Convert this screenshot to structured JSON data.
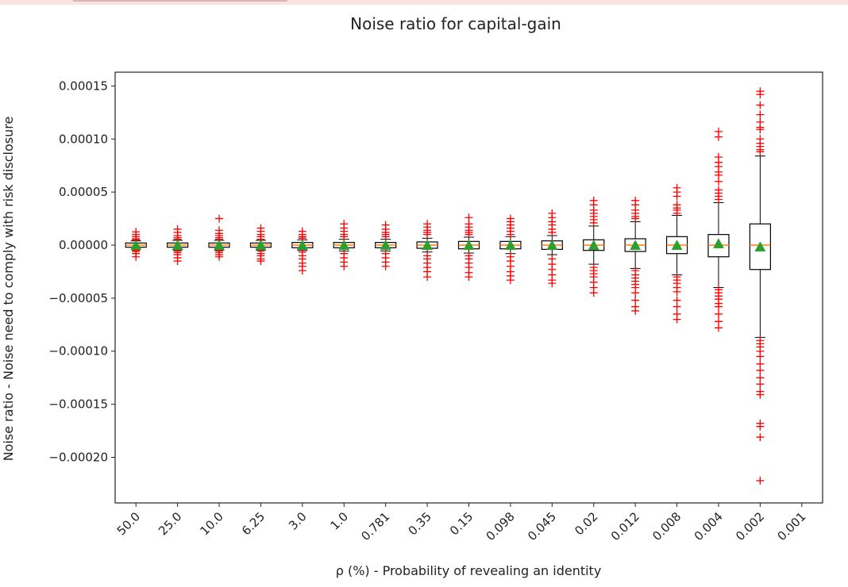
{
  "chart_data": {
    "type": "box",
    "title": "Noise ratio for capital-gain",
    "xlabel": "ρ (%) - Probability of revealing an identity",
    "ylabel": "Noise ratio - Noise need to comply with risk disclosure",
    "categories": [
      "50.0",
      "25.0",
      "10.0",
      "6.25",
      "3.0",
      "1.0",
      "0.781",
      "0.35",
      "0.15",
      "0.098",
      "0.045",
      "0.02",
      "0.012",
      "0.008",
      "0.004",
      "0.002",
      "0.001"
    ],
    "ylim": [
      -0.000243,
      0.000163
    ],
    "yticks": [
      0.00015,
      0.0001,
      5e-05,
      0.0,
      -5e-05,
      -0.0001,
      -0.00015,
      -0.0002
    ],
    "ytick_labels": [
      "0.00015",
      "0.00010",
      "0.00005",
      "0.00000",
      "−0.00005",
      "−0.00010",
      "−0.00015",
      "−0.00020"
    ],
    "grid": false,
    "colors": {
      "box": "#000000",
      "median": "#ff7f0e",
      "mean": "#2ca02c",
      "flier": "#ff0000",
      "frame": "#222222"
    },
    "boxes": [
      {
        "category": "50.0",
        "q1": -2e-06,
        "median": 0.0,
        "q3": 2e-06,
        "whislo": -4e-06,
        "whishi": 4e-06,
        "mean": -5e-07,
        "fliers": [
          1.25e-05,
          1e-05,
          8e-06,
          6e-06,
          5e-06,
          -5e-06,
          -6e-06,
          -8e-06,
          -1.1e-05
        ]
      },
      {
        "category": "25.0",
        "q1": -2e-06,
        "median": 0.0,
        "q3": 2e-06,
        "whislo": -4.5e-06,
        "whishi": 4.5e-06,
        "mean": -5e-07,
        "fliers": [
          1.5e-05,
          1.2e-05,
          9e-06,
          7e-06,
          5.5e-06,
          -5.5e-06,
          -7e-06,
          -9e-06,
          -1.2e-05,
          -1.5e-05
        ]
      },
      {
        "category": "10.0",
        "q1": -2e-06,
        "median": 0.0,
        "q3": 2e-06,
        "whislo": -4.5e-06,
        "whishi": 4.5e-06,
        "mean": -5e-07,
        "fliers": [
          2.5e-05,
          1.4e-05,
          1.1e-05,
          9e-06,
          7e-06,
          5.5e-06,
          -5.5e-06,
          -7e-06,
          -9e-06,
          -1.1e-05
        ]
      },
      {
        "category": "6.25",
        "q1": -2e-06,
        "median": 0.0,
        "q3": 2e-06,
        "whislo": -4.5e-06,
        "whishi": 4.5e-06,
        "mean": -5e-07,
        "fliers": [
          1.6e-05,
          1.3e-05,
          1e-05,
          8e-06,
          5.5e-06,
          -5.5e-06,
          -8e-06,
          -1e-05,
          -1.3e-05,
          -1.5e-05
        ]
      },
      {
        "category": "3.0",
        "q1": -2.5e-06,
        "median": 0.0,
        "q3": 2.5e-06,
        "whislo": -5e-06,
        "whishi": 5e-06,
        "mean": -5e-07,
        "fliers": [
          1.3e-05,
          1e-05,
          8e-06,
          6.5e-06,
          -6.5e-06,
          -1e-05,
          -1.3e-05,
          -1.7e-05,
          -2e-05,
          -2.4e-05
        ]
      },
      {
        "category": "1.0",
        "q1": -2.5e-06,
        "median": 0.0,
        "q3": 2.5e-06,
        "whislo": -5.5e-06,
        "whishi": 5.5e-06,
        "mean": -5e-07,
        "fliers": [
          2e-05,
          1.6e-05,
          1.3e-05,
          1e-05,
          8e-06,
          -8e-06,
          -1.2e-05,
          -1.6e-05,
          -2e-05
        ]
      },
      {
        "category": "0.781",
        "q1": -2.5e-06,
        "median": 0.0,
        "q3": 2.5e-06,
        "whislo": -5.5e-06,
        "whishi": 5.5e-06,
        "mean": -5e-07,
        "fliers": [
          1.9e-05,
          1.5e-05,
          1.2e-05,
          1e-05,
          8e-06,
          -8e-06,
          -1.2e-05,
          -1.6e-05,
          -2e-05
        ]
      },
      {
        "category": "0.35",
        "q1": -3e-06,
        "median": 0.0,
        "q3": 3e-06,
        "whislo": -6.5e-06,
        "whishi": 6.5e-06,
        "mean": -5e-07,
        "fliers": [
          2e-05,
          1.7e-05,
          1.4e-05,
          1.2e-05,
          1e-05,
          -1e-05,
          -1.3e-05,
          -1.7e-05,
          -2.1e-05,
          -2.5e-05,
          -3e-05
        ]
      },
      {
        "category": "0.15",
        "q1": -3.5e-06,
        "median": 0.0,
        "q3": 3.5e-06,
        "whislo": -7.5e-06,
        "whishi": 7.5e-06,
        "mean": -5e-07,
        "fliers": [
          2.6e-05,
          2e-05,
          1.7e-05,
          1.4e-05,
          1.2e-05,
          1e-05,
          -1e-05,
          -1.3e-05,
          -1.7e-05,
          -2.1e-05,
          -2.6e-05,
          -3e-05
        ]
      },
      {
        "category": "0.098",
        "q1": -3.5e-06,
        "median": 0.0,
        "q3": 3.5e-06,
        "whislo": -8e-06,
        "whishi": 8e-06,
        "mean": -5e-07,
        "fliers": [
          2.5e-05,
          2.2e-05,
          1.9e-05,
          1.6e-05,
          1.3e-05,
          1e-05,
          -1.1e-05,
          -1.5e-05,
          -2e-05,
          -2.5e-05,
          -2.9e-05,
          -3.3e-05
        ]
      },
      {
        "category": "0.045",
        "q1": -4e-06,
        "median": 0.0,
        "q3": 4e-06,
        "whislo": -9e-06,
        "whishi": 9e-06,
        "mean": -5e-07,
        "fliers": [
          3e-05,
          2.6e-05,
          2.2e-05,
          1.9e-05,
          1.5e-05,
          1.2e-05,
          -1.3e-05,
          -1.8e-05,
          -2.3e-05,
          -2.8e-05,
          -3.3e-05,
          -3.6e-05
        ]
      },
      {
        "category": "0.02",
        "q1": -5e-06,
        "median": 0.0,
        "q3": 5e-06,
        "whislo": -1.8e-05,
        "whishi": 1.8e-05,
        "mean": -5e-07,
        "fliers": [
          4.2e-05,
          3.8e-05,
          3.3e-05,
          3e-05,
          2.7e-05,
          2.4e-05,
          2.1e-05,
          -2.1e-05,
          -2.4e-05,
          -2.7e-05,
          -3e-05,
          -3.5e-05,
          -4e-05,
          -4.5e-05
        ]
      },
      {
        "category": "0.012",
        "q1": -6e-06,
        "median": 0.0,
        "q3": 6e-06,
        "whislo": -2.2e-05,
        "whishi": 2.2e-05,
        "mean": -5e-07,
        "fliers": [
          4.2e-05,
          3.8e-05,
          3.3e-05,
          3e-05,
          2.7e-05,
          2.5e-05,
          -2.4e-05,
          -2.8e-05,
          -3.1e-05,
          -3.4e-05,
          -3.7e-05,
          -4e-05,
          -4.5e-05,
          -5.2e-05,
          -5.8e-05,
          -6.2e-05
        ]
      },
      {
        "category": "0.008",
        "q1": -8e-06,
        "median": 0.0,
        "q3": 8e-06,
        "whislo": -2.8e-05,
        "whishi": 2.8e-05,
        "mean": -5e-07,
        "fliers": [
          5.4e-05,
          5e-05,
          4.6e-05,
          3.8e-05,
          3.5e-05,
          3.3e-05,
          3e-05,
          -3e-05,
          -3.3e-05,
          -3.6e-05,
          -4e-05,
          -4.4e-05,
          -5.2e-05,
          -5.8e-05,
          -6.5e-05,
          -7e-05
        ]
      },
      {
        "category": "0.004",
        "q1": -1.1e-05,
        "median": 0.0,
        "q3": 1e-05,
        "whislo": -4e-05,
        "whishi": 4e-05,
        "mean": 1e-06,
        "fliers": [
          0.000107,
          0.000102,
          8.3e-05,
          7.8e-05,
          7.4e-05,
          6.9e-05,
          6.6e-05,
          6e-05,
          5.2e-05,
          4.9e-05,
          4.6e-05,
          4.3e-05,
          -4.2e-05,
          -4.5e-05,
          -4.8e-05,
          -5.1e-05,
          -5.5e-05,
          -5.8e-05,
          -6.5e-05,
          -7.2e-05,
          -7.8e-05
        ]
      },
      {
        "category": "0.002",
        "q1": -2.3e-05,
        "median": 0.0,
        "q3": 2e-05,
        "whislo": -8.7e-05,
        "whishi": 8.4e-05,
        "mean": -2e-06,
        "fliers": [
          0.000145,
          0.000142,
          0.000132,
          0.000123,
          0.000116,
          0.000111,
          0.000109,
          0.0001,
          9.6e-05,
          9.3e-05,
          9e-05,
          8.8e-05,
          -9e-05,
          -9.3e-05,
          -9.6e-05,
          -0.0001,
          -0.000105,
          -0.000112,
          -0.000118,
          -0.000125,
          -0.000131,
          -0.000138,
          -0.000141,
          -0.000168,
          -0.000171,
          -0.000181,
          -0.000222
        ]
      },
      {
        "category": "0.001",
        "empty": true
      }
    ]
  }
}
